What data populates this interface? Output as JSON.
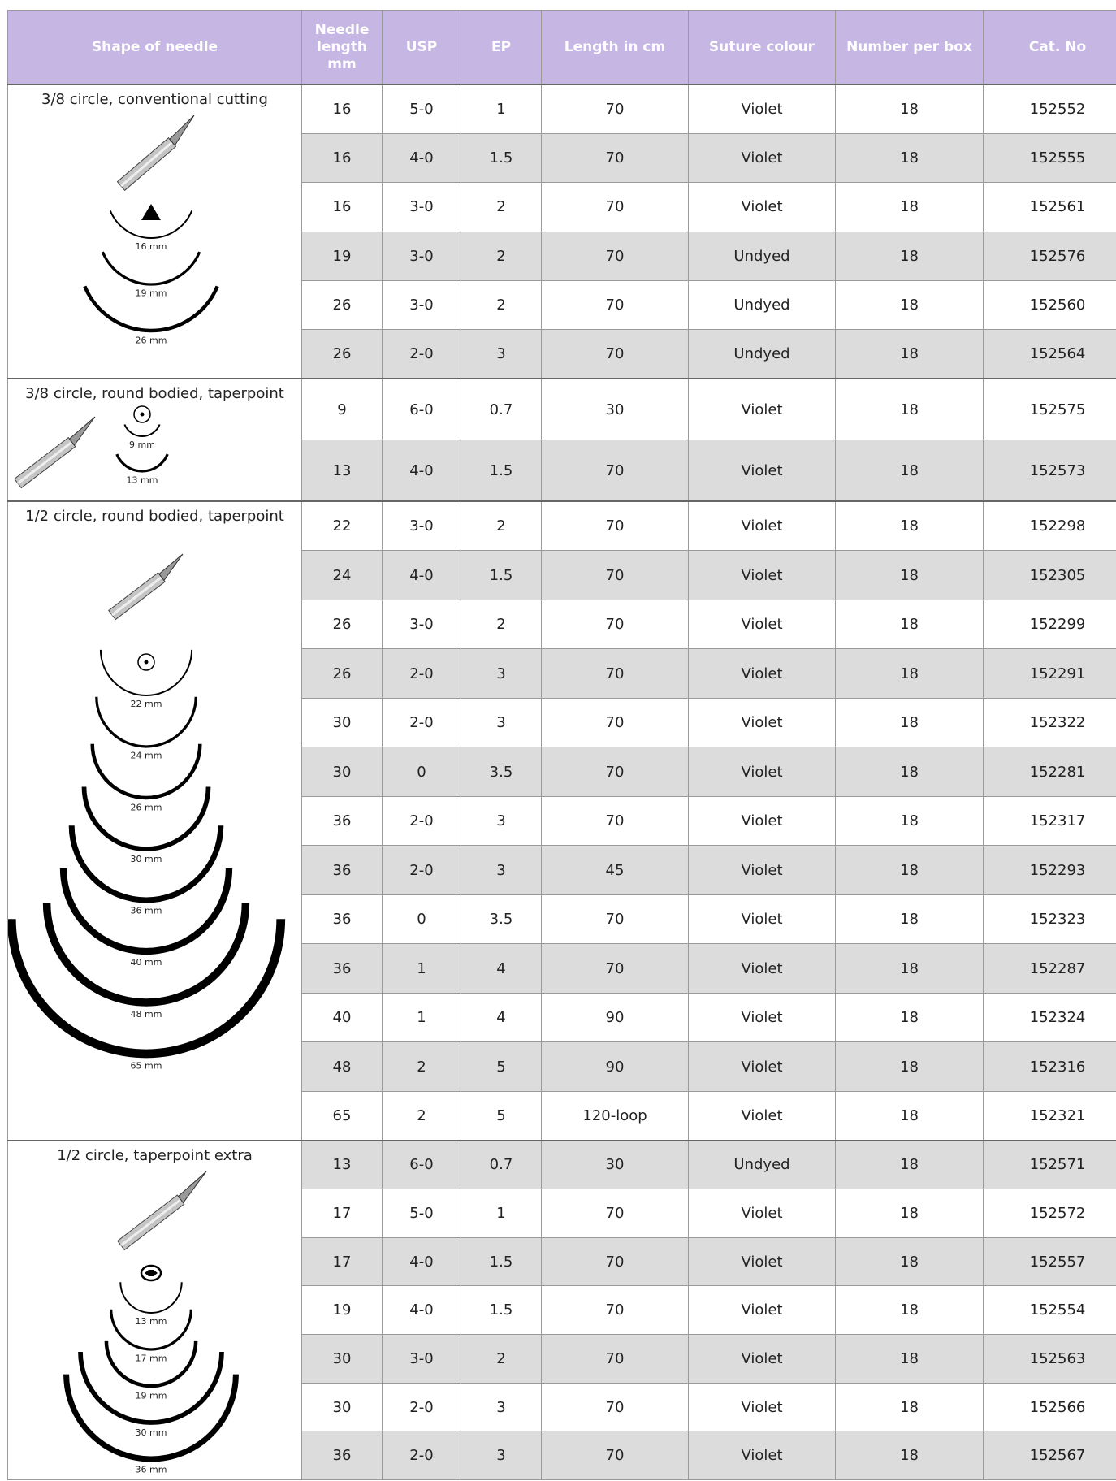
{
  "table": {
    "headers": [
      "Shape of needle",
      "Needle length mm",
      "USP",
      "EP",
      "Length in cm",
      "Suture colour",
      "Number per box",
      "Cat. No"
    ],
    "groups": [
      {
        "shape": "3/8 circle, conventional cutting",
        "diagram_labels": [
          "16 mm",
          "19 mm",
          "26 mm"
        ],
        "rows": [
          [
            "16",
            "5-0",
            "1",
            "70",
            "Violet",
            "18",
            "152552"
          ],
          [
            "16",
            "4-0",
            "1.5",
            "70",
            "Violet",
            "18",
            "152555"
          ],
          [
            "16",
            "3-0",
            "2",
            "70",
            "Violet",
            "18",
            "152561"
          ],
          [
            "19",
            "3-0",
            "2",
            "70",
            "Undyed",
            "18",
            "152576"
          ],
          [
            "26",
            "3-0",
            "2",
            "70",
            "Undyed",
            "18",
            "152560"
          ],
          [
            "26",
            "2-0",
            "3",
            "70",
            "Undyed",
            "18",
            "152564"
          ]
        ]
      },
      {
        "shape": "3/8 circle, round bodied, taperpoint",
        "diagram_labels": [
          "9 mm",
          "13 mm"
        ],
        "rows": [
          [
            "9",
            "6-0",
            "0.7",
            "30",
            "Violet",
            "18",
            "152575"
          ],
          [
            "13",
            "4-0",
            "1.5",
            "70",
            "Violet",
            "18",
            "152573"
          ]
        ]
      },
      {
        "shape": "1/2 circle, round bodied, taperpoint",
        "diagram_labels": [
          "22 mm",
          "24 mm",
          "26 mm",
          "30 mm",
          "36 mm",
          "40 mm",
          "48 mm",
          "65 mm"
        ],
        "rows": [
          [
            "22",
            "3-0",
            "2",
            "70",
            "Violet",
            "18",
            "152298"
          ],
          [
            "24",
            "4-0",
            "1.5",
            "70",
            "Violet",
            "18",
            "152305"
          ],
          [
            "26",
            "3-0",
            "2",
            "70",
            "Violet",
            "18",
            "152299"
          ],
          [
            "26",
            "2-0",
            "3",
            "70",
            "Violet",
            "18",
            "152291"
          ],
          [
            "30",
            "2-0",
            "3",
            "70",
            "Violet",
            "18",
            "152322"
          ],
          [
            "30",
            "0",
            "3.5",
            "70",
            "Violet",
            "18",
            "152281"
          ],
          [
            "36",
            "2-0",
            "3",
            "70",
            "Violet",
            "18",
            "152317"
          ],
          [
            "36",
            "2-0",
            "3",
            "45",
            "Violet",
            "18",
            "152293"
          ],
          [
            "36",
            "0",
            "3.5",
            "70",
            "Violet",
            "18",
            "152323"
          ],
          [
            "36",
            "1",
            "4",
            "70",
            "Violet",
            "18",
            "152287"
          ],
          [
            "40",
            "1",
            "4",
            "90",
            "Violet",
            "18",
            "152324"
          ],
          [
            "48",
            "2",
            "5",
            "90",
            "Violet",
            "18",
            "152316"
          ],
          [
            "65",
            "2",
            "5",
            "120-loop",
            "Violet",
            "18",
            "152321"
          ]
        ]
      },
      {
        "shape": "1/2 circle, taperpoint extra",
        "diagram_labels": [
          "13 mm",
          "17 mm",
          "19 mm",
          "30 mm",
          "36 mm"
        ],
        "rows": [
          [
            "13",
            "6-0",
            "0.7",
            "30",
            "Undyed",
            "18",
            "152571"
          ],
          [
            "17",
            "5-0",
            "1",
            "70",
            "Violet",
            "18",
            "152572"
          ],
          [
            "17",
            "4-0",
            "1.5",
            "70",
            "Violet",
            "18",
            "152557"
          ],
          [
            "19",
            "4-0",
            "1.5",
            "70",
            "Violet",
            "18",
            "152554"
          ],
          [
            "30",
            "3-0",
            "2",
            "70",
            "Violet",
            "18",
            "152563"
          ],
          [
            "30",
            "2-0",
            "3",
            "70",
            "Violet",
            "18",
            "152566"
          ],
          [
            "36",
            "2-0",
            "3",
            "70",
            "Violet",
            "18",
            "152567"
          ]
        ]
      }
    ]
  }
}
